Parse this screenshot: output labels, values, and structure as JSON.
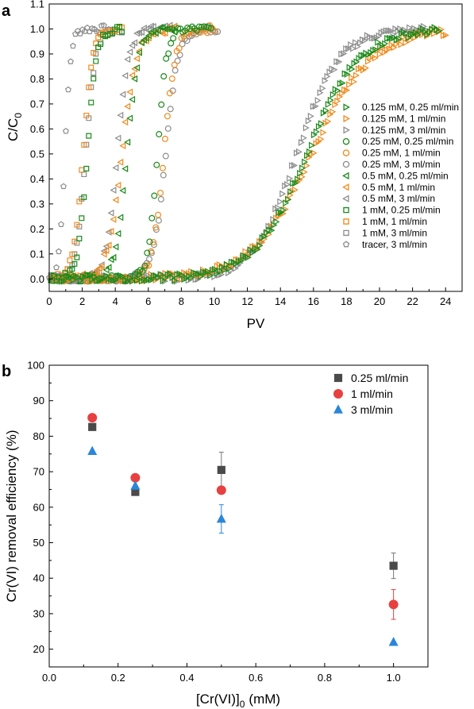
{
  "chart_data": [
    {
      "panel": "a",
      "type": "scatter",
      "xlabel": "PV",
      "ylabel_main": "C/C",
      "ylabel_sub": "0",
      "xlim": [
        0,
        25
      ],
      "ylim": [
        -0.05,
        1.1
      ],
      "xticks": [
        0,
        2,
        4,
        6,
        8,
        10,
        12,
        14,
        16,
        18,
        20,
        22,
        24
      ],
      "yticks": [
        0.0,
        0.1,
        0.2,
        0.3,
        0.4,
        0.5,
        0.6,
        0.7,
        0.8,
        0.9,
        1.0,
        1.1
      ],
      "grid": false,
      "legend_position": "right",
      "series": [
        {
          "name": "0.125 mM, 0.25 ml/min",
          "marker": "triangle-right",
          "color": "#1a8a1a",
          "mid": 15.6,
          "steep": 1.6,
          "xmin": 0.3,
          "xmax": 23.6
        },
        {
          "name": "0.125 mM, 1 ml/min",
          "marker": "triangle-right",
          "color": "#f08a1c",
          "mid": 15.9,
          "steep": 1.8,
          "xmin": 0.3,
          "xmax": 24.0
        },
        {
          "name": "0.125 mM, 3 ml/min",
          "marker": "triangle-right",
          "color": "#8c8c8c",
          "mid": 15.0,
          "steep": 1.3,
          "xmin": 0.3,
          "xmax": 22.8
        },
        {
          "name": "0.25 mM, 0.25 ml/min",
          "marker": "circle",
          "color": "#1a8a1a",
          "mid": 6.55,
          "steep": 0.28,
          "xmin": 0.2,
          "xmax": 9.8
        },
        {
          "name": "0.25 mM, 1 ml/min",
          "marker": "circle",
          "color": "#f08a1c",
          "mid": 6.95,
          "steep": 0.35,
          "xmin": 0.2,
          "xmax": 10.0
        },
        {
          "name": "0.25 mM, 3 ml/min",
          "marker": "circle",
          "color": "#8c8c8c",
          "mid": 7.05,
          "steep": 0.38,
          "xmin": 0.2,
          "xmax": 10.2
        },
        {
          "name": "0.5 mM, 0.25 ml/min",
          "marker": "triangle-left",
          "color": "#1a8a1a",
          "mid": 4.7,
          "steep": 0.35,
          "xmin": 0.2,
          "xmax": 7.6
        },
        {
          "name": "0.5 mM, 1 ml/min",
          "marker": "triangle-left",
          "color": "#f08a1c",
          "mid": 4.4,
          "steep": 0.45,
          "xmin": 0.2,
          "xmax": 7.6
        },
        {
          "name": "0.5 mM, 3 ml/min",
          "marker": "triangle-left",
          "color": "#8c8c8c",
          "mid": 4.1,
          "steep": 0.35,
          "xmin": 0.2,
          "xmax": 7.6
        },
        {
          "name": "1 mM, 0.25 ml/min",
          "marker": "square",
          "color": "#1a8a1a",
          "mid": 2.3,
          "steep": 0.28,
          "xmin": 0.1,
          "xmax": 4.4
        },
        {
          "name": "1 mM, 1 ml/min",
          "marker": "square",
          "color": "#f08a1c",
          "mid": 2.05,
          "steep": 0.3,
          "xmin": 0.1,
          "xmax": 4.4
        },
        {
          "name": "1 mM, 3 ml/min",
          "marker": "square",
          "color": "#8c8c8c",
          "mid": 2.2,
          "steep": 0.3,
          "xmin": 0.1,
          "xmax": 4.4
        },
        {
          "name": "tracer, 3 ml/min",
          "marker": "pentagon",
          "color": "#8c8c8c",
          "mid": 0.95,
          "steep": 0.18,
          "xmin": 0.0,
          "xmax": 3.6
        }
      ]
    },
    {
      "panel": "b",
      "type": "scatter",
      "xlabel": "[Cr(VI)]",
      "xlabel_sub": "0",
      "xlabel_unit": "(mM)",
      "ylabel": "Cr(VI) removal efficiency (%)",
      "xlim": [
        0.0,
        1.1
      ],
      "ylim": [
        15,
        100
      ],
      "xticks": [
        0.0,
        0.2,
        0.4,
        0.6,
        0.8,
        1.0
      ],
      "yticks": [
        20,
        30,
        40,
        50,
        60,
        70,
        80,
        90,
        100
      ],
      "grid": false,
      "legend_position": "top-right",
      "categories": [
        0.125,
        0.25,
        0.5,
        1.0
      ],
      "series": [
        {
          "name": "0.25 ml/min",
          "marker": "square",
          "color": "#4a4a4a",
          "values": [
            82.6,
            64.3,
            70.5,
            43.5
          ],
          "errors": [
            0,
            0,
            5.0,
            3.6
          ]
        },
        {
          "name": "1 ml/min",
          "marker": "circle",
          "color": "#e84040",
          "values": [
            85.2,
            68.3,
            64.8,
            32.6
          ],
          "errors": [
            0,
            0,
            0,
            4.2
          ]
        },
        {
          "name": "3 ml/min",
          "marker": "triangle-up",
          "color": "#2b86d9",
          "values": [
            75.8,
            66.0,
            56.7,
            22.0
          ],
          "errors": [
            0,
            0,
            4.0,
            0
          ]
        }
      ]
    }
  ]
}
